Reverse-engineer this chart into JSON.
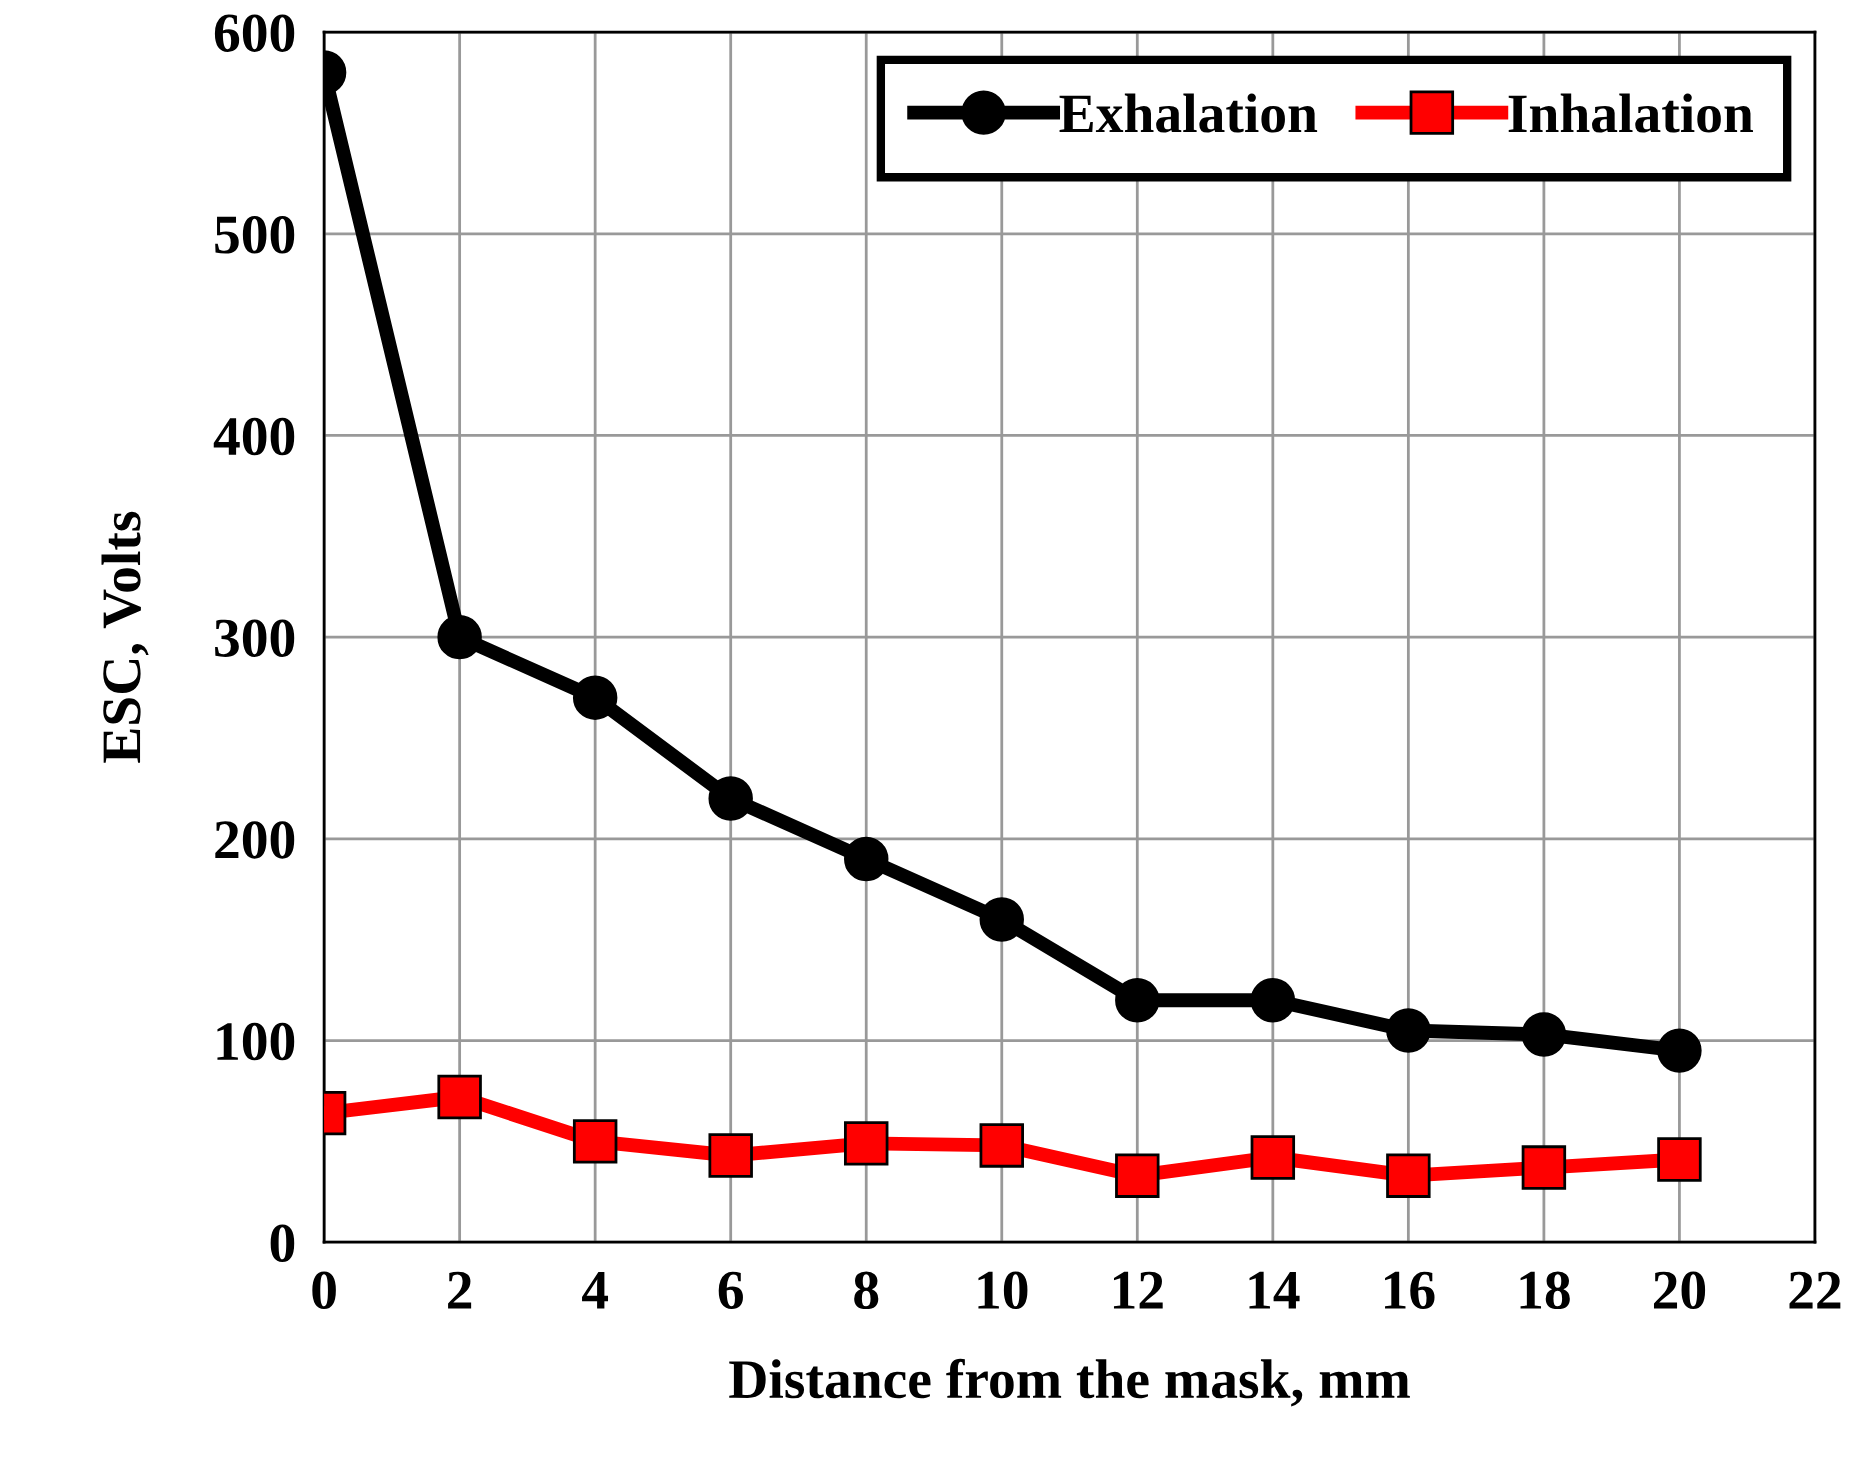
{
  "chart_data": {
    "type": "line",
    "xlabel": "Distance from the mask, mm",
    "ylabel": "ESC, Volts",
    "x": [
      0,
      2,
      4,
      6,
      8,
      10,
      12,
      14,
      16,
      18,
      20
    ],
    "series": [
      {
        "name": "Exhalation",
        "color": "#000000",
        "marker": "circle",
        "values": [
          580,
          300,
          270,
          220,
          190,
          160,
          120,
          120,
          105,
          103,
          95
        ]
      },
      {
        "name": "Inhalation",
        "color": "#ff0000",
        "marker": "square",
        "values": [
          64,
          72,
          50,
          43,
          49,
          48,
          33,
          42,
          33,
          37,
          41
        ]
      }
    ],
    "xlim": [
      0,
      22
    ],
    "xticks": [
      0,
      2,
      4,
      6,
      8,
      10,
      12,
      14,
      16,
      18,
      20,
      22
    ],
    "ylim": [
      0,
      600
    ],
    "yticks": [
      0,
      100,
      200,
      300,
      400,
      500,
      600
    ],
    "grid": true,
    "legend": "top right",
    "line_style": "solid"
  }
}
